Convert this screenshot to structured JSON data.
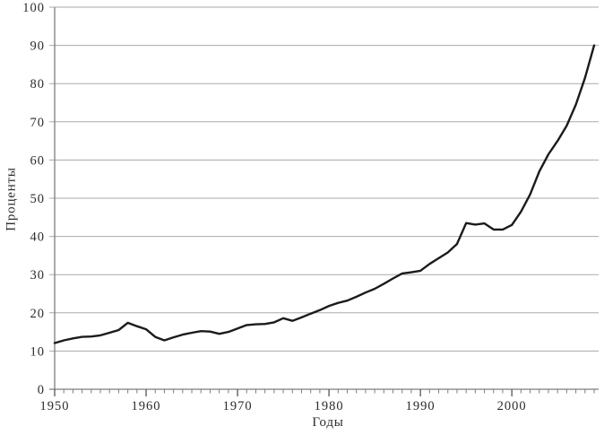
{
  "chart_data": {
    "type": "line",
    "title": "",
    "xlabel": "Годы",
    "ylabel": "Проценты",
    "x_range": [
      1950,
      2009
    ],
    "ylim": [
      0,
      100
    ],
    "ytick_step": 10,
    "yticks": [
      0,
      10,
      20,
      30,
      40,
      50,
      60,
      70,
      80,
      90,
      100
    ],
    "xticks": [
      1950,
      1960,
      1970,
      1980,
      1990,
      2000
    ],
    "minor_xtick_step": 1,
    "grid": true,
    "legend": false,
    "x": [
      1950,
      1951,
      1952,
      1953,
      1954,
      1955,
      1956,
      1957,
      1958,
      1959,
      1960,
      1961,
      1962,
      1963,
      1964,
      1965,
      1966,
      1967,
      1968,
      1969,
      1970,
      1971,
      1972,
      1973,
      1974,
      1975,
      1976,
      1977,
      1978,
      1979,
      1980,
      1981,
      1982,
      1983,
      1984,
      1985,
      1986,
      1987,
      1988,
      1989,
      1990,
      1991,
      1992,
      1993,
      1994,
      1995,
      1996,
      1997,
      1998,
      1999,
      2000,
      2001,
      2002,
      2003,
      2004,
      2005,
      2006,
      2007,
      2008,
      2009
    ],
    "values": [
      12.1,
      12.8,
      13.3,
      13.7,
      13.8,
      14.1,
      14.8,
      15.5,
      17.4,
      16.5,
      15.7,
      13.7,
      12.8,
      13.6,
      14.3,
      14.8,
      15.2,
      15.1,
      14.5,
      15.0,
      15.9,
      16.8,
      17.0,
      17.1,
      17.5,
      18.6,
      17.9,
      18.8,
      19.8,
      20.7,
      21.8,
      22.6,
      23.2,
      24.2,
      25.3,
      26.3,
      27.6,
      29.0,
      30.3,
      30.6,
      31.0,
      32.8,
      34.3,
      35.8,
      38.0,
      43.5,
      43.1,
      43.4,
      41.8,
      41.8,
      43.0,
      46.5,
      51.0,
      57.0,
      61.5,
      65.0,
      69.0,
      74.5,
      81.5,
      90.0
    ],
    "line_color": "#1b1b1b",
    "grid_color": "#aaaaaa",
    "axis_color": "#7d7d7d",
    "text_color": "#2b2b2b"
  }
}
